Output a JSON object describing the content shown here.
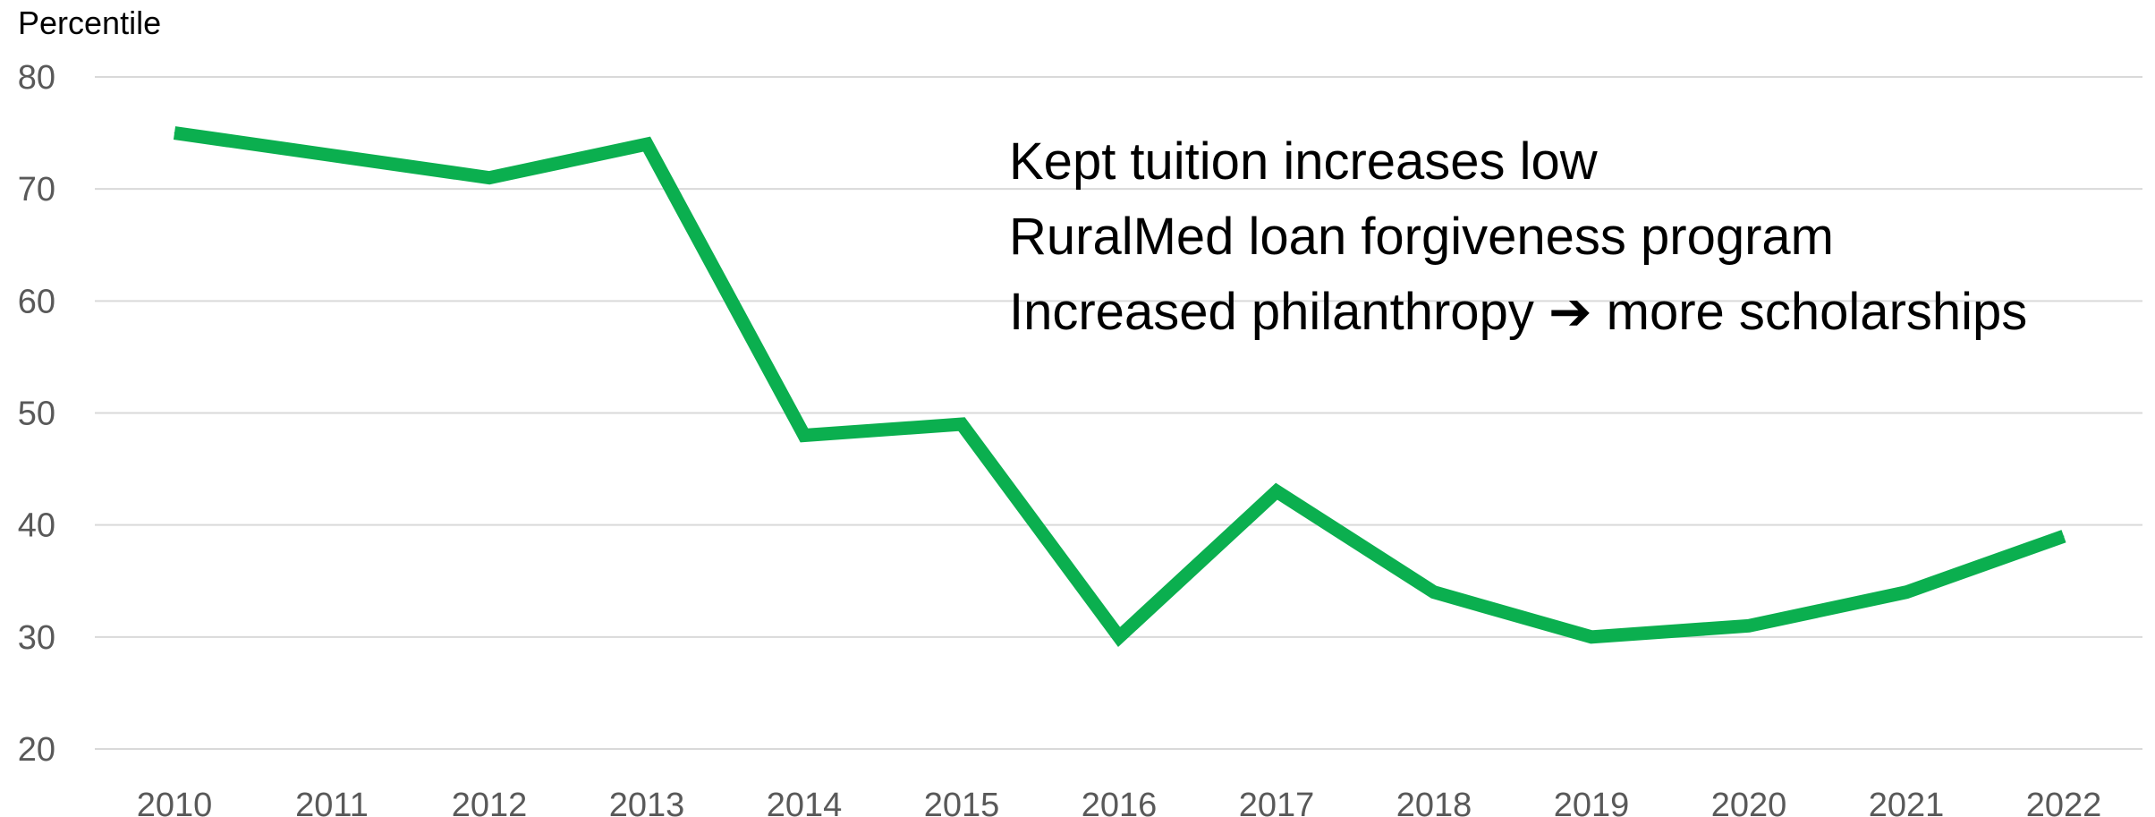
{
  "chart_data": {
    "type": "line",
    "title": "",
    "xlabel": "",
    "ylabel": "Percentile",
    "ylim": [
      20,
      80
    ],
    "yticks": [
      20,
      30,
      40,
      50,
      60,
      70,
      80
    ],
    "grid": true,
    "legend": "none",
    "categories": [
      "2010",
      "2011",
      "2012",
      "2013",
      "2014",
      "2015",
      "2016",
      "2017",
      "2018",
      "2019",
      "2020",
      "2021",
      "2022"
    ],
    "series": [
      {
        "values": [
          75,
          73,
          71,
          74,
          48,
          49,
          30,
          43,
          34,
          30,
          31,
          34,
          39
        ],
        "color": "#0BAF4F"
      }
    ],
    "annotations": [
      "Kept tuition increases low",
      "RuralMed loan forgiveness program",
      "Increased philanthropy ➔ more scholarships"
    ],
    "colors": {
      "line": "#0BAF4F",
      "grid": "#D9D9D9",
      "tick_text": "#595959"
    }
  }
}
